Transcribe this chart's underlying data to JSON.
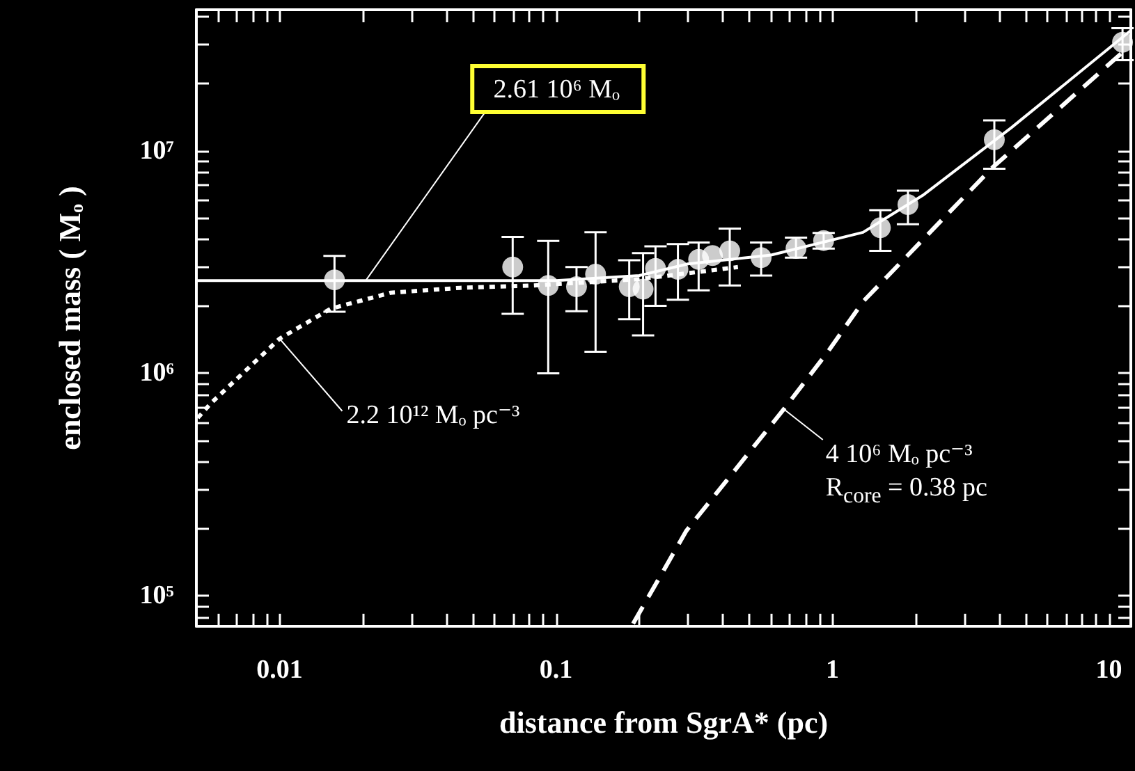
{
  "chart_data": {
    "type": "scatter",
    "xlabel": "distance from SgrA* (pc)",
    "ylabel": "enclosed mass ( Mₒ )",
    "log": "xy",
    "grid": false,
    "xlim": [
      0.005,
      12
    ],
    "ylim": [
      73000,
      43000000
    ],
    "xticks": [
      {
        "value": 0.006,
        "label": null
      },
      {
        "value": 0.007,
        "label": null
      },
      {
        "value": 0.008,
        "label": null
      },
      {
        "value": 0.009,
        "label": null
      },
      0.01,
      {
        "value": 0.02,
        "label": null
      },
      {
        "value": 0.03,
        "label": null
      },
      {
        "value": 0.04,
        "label": null
      },
      {
        "value": 0.05,
        "label": null
      },
      {
        "value": 0.06,
        "label": null
      },
      {
        "value": 0.07,
        "label": null
      },
      {
        "value": 0.08,
        "label": null
      },
      {
        "value": 0.09,
        "label": null
      },
      0.1,
      {
        "value": 0.2,
        "label": null
      },
      {
        "value": 0.3,
        "label": null
      },
      {
        "value": 0.4,
        "label": null
      },
      {
        "value": 0.5,
        "label": null
      },
      {
        "value": 0.6,
        "label": null
      },
      {
        "value": 0.7,
        "label": null
      },
      {
        "value": 0.8,
        "label": null
      },
      {
        "value": 0.9,
        "label": null
      },
      1,
      {
        "value": 2,
        "label": null
      },
      {
        "value": 3,
        "label": null
      },
      {
        "value": 4,
        "label": null
      },
      {
        "value": 5,
        "label": null
      },
      {
        "value": 6,
        "label": null
      },
      {
        "value": 7,
        "label": null
      },
      {
        "value": 8,
        "label": null
      },
      {
        "value": 9,
        "label": null
      },
      10
    ],
    "yticks": [
      {
        "value": 80000,
        "label": null
      },
      {
        "value": 90000,
        "label": null
      },
      {
        "value": 100000,
        "label": "10⁵"
      },
      {
        "value": 200000,
        "label": null
      },
      {
        "value": 300000,
        "label": null
      },
      {
        "value": 400000,
        "label": null
      },
      {
        "value": 500000,
        "label": null
      },
      {
        "value": 600000,
        "label": null
      },
      {
        "value": 700000,
        "label": null
      },
      {
        "value": 800000,
        "label": null
      },
      {
        "value": 900000,
        "label": null
      },
      {
        "value": 1000000,
        "label": "10⁶"
      },
      {
        "value": 2000000,
        "label": null
      },
      {
        "value": 3000000,
        "label": null
      },
      {
        "value": 4000000,
        "label": null
      },
      {
        "value": 5000000,
        "label": null
      },
      {
        "value": 6000000,
        "label": null
      },
      {
        "value": 7000000,
        "label": null
      },
      {
        "value": 8000000,
        "label": null
      },
      {
        "value": 9000000,
        "label": null
      },
      {
        "value": 10000000,
        "label": "10⁷"
      },
      {
        "value": 20000000,
        "label": null
      },
      {
        "value": 30000000,
        "label": null
      },
      {
        "value": 40000000,
        "label": null
      }
    ],
    "annotations": [
      {
        "text": "2.61 10⁶ Mₒ",
        "x": 0.0205,
        "y": 2610000
      },
      {
        "text": "2.2 10¹² Mₒ pc⁻³",
        "x": 0.01,
        "y": 1430000
      },
      {
        "text": "4 10⁶ Mₒ pc⁻³\nR$_{core}$ = 0.38 pc",
        "x": 0.667,
        "y": 690000
      }
    ],
    "series": [
      {
        "type": "line",
        "color": "#ffffff",
        "line_style": "solid",
        "marker": "none",
        "x": [
          0.005,
          0.1,
          0.2,
          0.3,
          0.6,
          1.29,
          2.12,
          4.44,
          12
        ],
        "values": [
          2610000,
          2610000,
          2750000,
          3100000,
          3400000,
          4300000,
          6300000,
          12700000,
          34700000
        ]
      },
      {
        "type": "line",
        "color": "#ffffff",
        "line_style": "dotted",
        "marker": "none",
        "x": [
          0.00506,
          0.00562,
          0.01,
          0.0153,
          0.0252,
          0.045,
          0.083,
          0.2,
          0.455
        ],
        "values": [
          630000,
          730000,
          1430000,
          1950000,
          2300000,
          2420000,
          2480000,
          2650000,
          3000000
        ]
      },
      {
        "type": "line",
        "color": "#ffffff",
        "line_style": "dashed",
        "marker": "none",
        "x": [
          0.19,
          0.296,
          0.667,
          0.958,
          1.29,
          3.79,
          10.8,
          11.9
        ],
        "values": [
          75000,
          196000,
          690000,
          1240000,
          2100000,
          8400000,
          26600000,
          29500000
        ]
      },
      {
        "color": "#ffffff",
        "marker": "circle",
        "x": [
          0.0158,
          0.0697,
          0.0937,
          0.1186,
          0.139,
          0.184,
          0.2065,
          0.229,
          0.276,
          0.328,
          0.368,
          0.425,
          0.552,
          0.738,
          0.929,
          1.49,
          1.875,
          3.85,
          11.2
        ],
        "values": [
          2630000,
          3000000,
          2480000,
          2450000,
          2790000,
          2450000,
          2390000,
          2960000,
          2930000,
          3250000,
          3380000,
          3550000,
          3310000,
          3640000,
          3950000,
          4510000,
          5730000,
          11200000,
          30700000
        ],
        "errors": [
          [
            1890000,
            3370000
          ],
          [
            1850000,
            4100000
          ],
          [
            1000000,
            3930000
          ],
          [
            1900000,
            3000000
          ],
          [
            1250000,
            4300000
          ],
          [
            1750000,
            3220000
          ],
          [
            1480000,
            3470000
          ],
          [
            2010000,
            3720000
          ],
          [
            2140000,
            3810000
          ],
          [
            2360000,
            3870000
          ],
          null,
          [
            2480000,
            4470000
          ],
          [
            2750000,
            3870000
          ],
          [
            3310000,
            4070000
          ],
          [
            3630000,
            4270000
          ],
          [
            3550000,
            5410000
          ],
          [
            4670000,
            6620000
          ],
          [
            8300000,
            13700000
          ],
          [
            25500000,
            35500000
          ]
        ]
      }
    ]
  }
}
